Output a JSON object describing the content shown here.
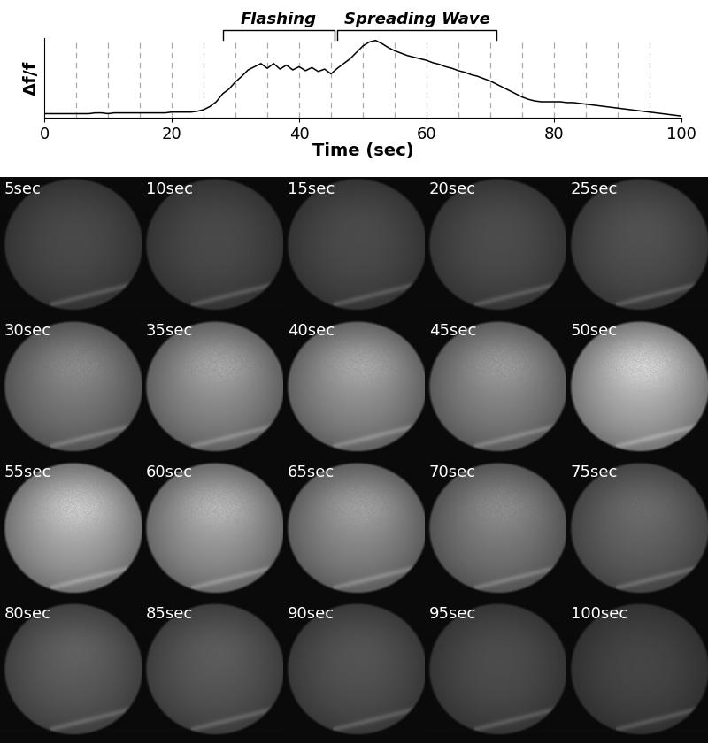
{
  "chart_data": {
    "type": "line",
    "xlabel": "Time (sec)",
    "ylabel": "Δf/f",
    "x": [
      0,
      1,
      2,
      3,
      4,
      5,
      6,
      7,
      8,
      9,
      10,
      11,
      12,
      13,
      14,
      15,
      16,
      17,
      18,
      19,
      20,
      21,
      22,
      23,
      24,
      25,
      26,
      27,
      28,
      29,
      30,
      31,
      32,
      33,
      34,
      35,
      36,
      37,
      38,
      39,
      40,
      41,
      42,
      43,
      44,
      45,
      46,
      47,
      48,
      49,
      50,
      51,
      52,
      53,
      54,
      55,
      56,
      57,
      58,
      59,
      60,
      61,
      62,
      63,
      64,
      65,
      66,
      67,
      68,
      69,
      70,
      71,
      72,
      73,
      74,
      75,
      76,
      77,
      78,
      79,
      80,
      81,
      82,
      83,
      84,
      85,
      86,
      87,
      88,
      89,
      90,
      91,
      92,
      93,
      94,
      95,
      96,
      97,
      98,
      99,
      100
    ],
    "values": [
      0.05,
      0.05,
      0.05,
      0.05,
      0.05,
      0.05,
      0.05,
      0.05,
      0.06,
      0.06,
      0.05,
      0.06,
      0.06,
      0.06,
      0.06,
      0.06,
      0.06,
      0.06,
      0.06,
      0.06,
      0.07,
      0.07,
      0.07,
      0.07,
      0.08,
      0.1,
      0.14,
      0.2,
      0.3,
      0.36,
      0.45,
      0.52,
      0.6,
      0.64,
      0.68,
      0.62,
      0.68,
      0.61,
      0.66,
      0.6,
      0.64,
      0.59,
      0.63,
      0.58,
      0.61,
      0.55,
      0.62,
      0.68,
      0.74,
      0.82,
      0.9,
      0.95,
      0.97,
      0.93,
      0.88,
      0.84,
      0.81,
      0.78,
      0.76,
      0.74,
      0.72,
      0.69,
      0.67,
      0.64,
      0.62,
      0.59,
      0.57,
      0.54,
      0.52,
      0.49,
      0.46,
      0.42,
      0.38,
      0.34,
      0.3,
      0.26,
      0.23,
      0.21,
      0.2,
      0.2,
      0.2,
      0.2,
      0.19,
      0.19,
      0.18,
      0.17,
      0.16,
      0.15,
      0.14,
      0.13,
      0.12,
      0.11,
      0.1,
      0.09,
      0.08,
      0.07,
      0.06,
      0.05,
      0.04,
      0.03,
      0.02
    ],
    "color": "#000000",
    "xlim": [
      0,
      100
    ],
    "xticks": [
      0,
      20,
      40,
      60,
      80,
      100
    ],
    "ylim": [
      0,
      1
    ],
    "tick_labels": "x",
    "vlines": [
      5,
      10,
      15,
      20,
      25,
      30,
      35,
      40,
      45,
      50,
      55,
      60,
      65,
      70,
      75,
      80,
      85,
      90,
      95
    ],
    "annotations": [
      {
        "text": "Flashing",
        "x_range": [
          28,
          45.5
        ]
      },
      {
        "text": "Spreading Wave",
        "x_range": [
          46,
          71
        ]
      }
    ]
  },
  "panels": [
    {
      "time": 5,
      "label": "5sec"
    },
    {
      "time": 10,
      "label": "10sec"
    },
    {
      "time": 15,
      "label": "15sec"
    },
    {
      "time": 20,
      "label": "20sec"
    },
    {
      "time": 25,
      "label": "25sec"
    },
    {
      "time": 30,
      "label": "30sec"
    },
    {
      "time": 35,
      "label": "35sec"
    },
    {
      "time": 40,
      "label": "40sec"
    },
    {
      "time": 45,
      "label": "45sec"
    },
    {
      "time": 50,
      "label": "50sec"
    },
    {
      "time": 55,
      "label": "55sec"
    },
    {
      "time": 60,
      "label": "60sec"
    },
    {
      "time": 65,
      "label": "65sec"
    },
    {
      "time": 70,
      "label": "70sec"
    },
    {
      "time": 75,
      "label": "75sec"
    },
    {
      "time": 80,
      "label": "80sec"
    },
    {
      "time": 85,
      "label": "85sec"
    },
    {
      "time": 90,
      "label": "90sec"
    },
    {
      "time": 95,
      "label": "95sec"
    },
    {
      "time": 100,
      "label": "100sec"
    }
  ]
}
